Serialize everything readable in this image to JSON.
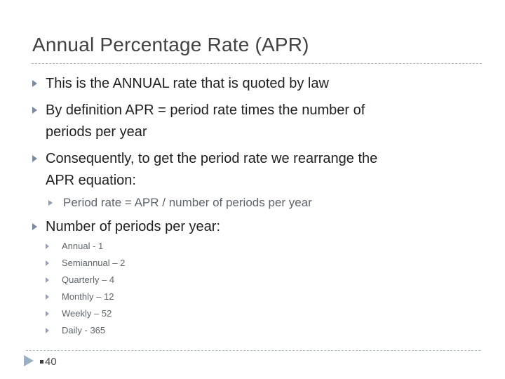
{
  "title": "Annual Percentage Rate (APR)",
  "content": {
    "items": [
      {
        "level": 1,
        "lines": [
          "This is the ANNUAL rate that is quoted by law"
        ]
      },
      {
        "level": 1,
        "lines": [
          "By definition APR = period rate times the number of",
          "periods per year"
        ]
      },
      {
        "level": 1,
        "lines": [
          "Consequently, to get the period rate we rearrange the",
          "APR equation:"
        ]
      },
      {
        "level": 2,
        "lines": [
          "Period rate = APR / number of periods per year"
        ]
      },
      {
        "level": 1,
        "gap": "big",
        "lines": [
          "Number of periods per year:"
        ]
      },
      {
        "level": 3,
        "lines": [
          "Annual - 1"
        ]
      },
      {
        "level": 3,
        "lines": [
          "Semiannual – 2"
        ]
      },
      {
        "level": 3,
        "lines": [
          "Quarterly – 4"
        ]
      },
      {
        "level": 3,
        "lines": [
          "Monthly – 12"
        ]
      },
      {
        "level": 3,
        "lines": [
          "Weekly – 52"
        ]
      },
      {
        "level": 3,
        "lines": [
          "Daily - 365"
        ]
      }
    ]
  },
  "footer": {
    "page_number": "40"
  },
  "icons": {
    "bullet": "right-triangle-icon",
    "footer": "right-triangle-icon",
    "page_marker": "square-icon"
  },
  "colors": {
    "title-text": "#424242",
    "body-text": "#1f1f1f",
    "sub-text": "#5d646d",
    "list-text": "#5e656c",
    "bullet-lv1": "#7c8aa1",
    "bullet-lv2": "#8d9bb0",
    "bullet-lv3": "#93a1b3",
    "footer-arrow": "#9bafc4",
    "page-text": "#4b4b4b",
    "page-square": "#3d3d3d",
    "divider": "#adb5bd"
  }
}
